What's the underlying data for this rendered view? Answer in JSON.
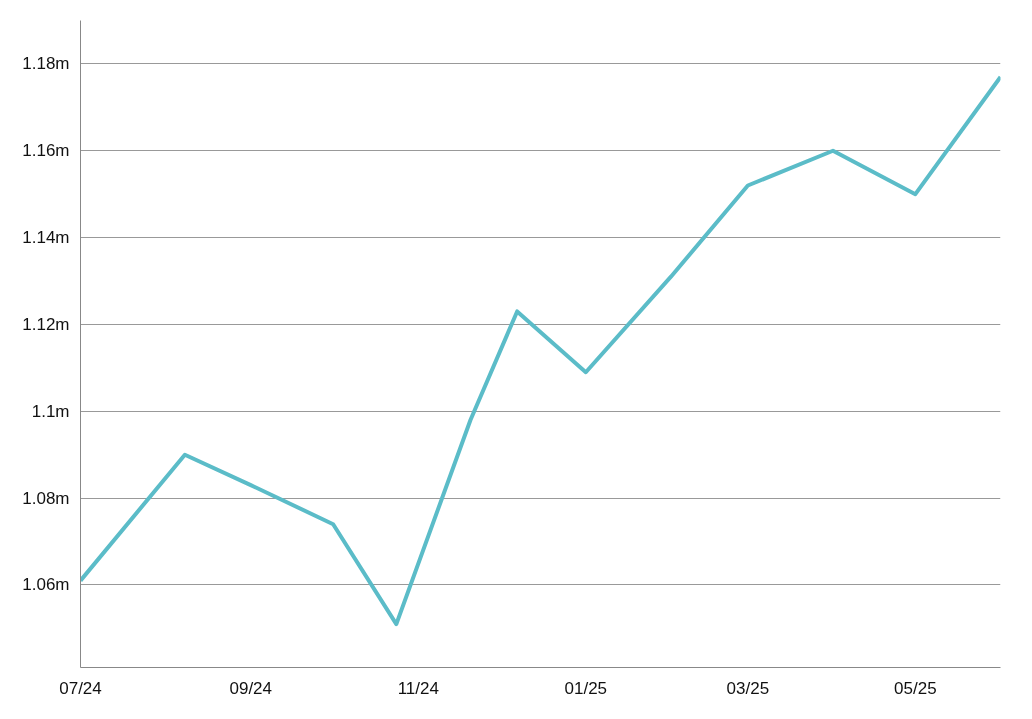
{
  "chart_data": {
    "type": "line",
    "x": [
      "2024-07-01",
      "2024-08-08",
      "2024-09-01",
      "2024-10-01",
      "2024-10-24",
      "2024-11-20",
      "2024-12-07",
      "2025-01-01",
      "2025-02-01",
      "2025-03-01",
      "2025-04-01",
      "2025-05-01",
      "2025-06-01"
    ],
    "series": [
      {
        "color": "#5bbcc8",
        "values": [
          1.061,
          1.09,
          1.083,
          1.074,
          1.051,
          1.098,
          1.123,
          1.109,
          1.131,
          1.152,
          1.16,
          1.15,
          1.177
        ]
      }
    ],
    "xlim": [
      "2024-07-01",
      "2025-06-01"
    ],
    "xticks": [
      {
        "value": "2024-07-01",
        "label": "07/24"
      },
      {
        "value": "2024-09-01",
        "label": "09/24"
      },
      {
        "value": "2024-11-01",
        "label": "11/24"
      },
      {
        "value": "2025-01-01",
        "label": "01/25"
      },
      {
        "value": "2025-03-01",
        "label": "03/25"
      },
      {
        "value": "2025-05-01",
        "label": "05/25"
      }
    ],
    "ylim": [
      1.041,
      1.19
    ],
    "yticks": [
      {
        "value": 1.06,
        "label": "1.06m"
      },
      {
        "value": 1.08,
        "label": "1.08m"
      },
      {
        "value": 1.1,
        "label": "1.1m"
      },
      {
        "value": 1.12,
        "label": "1.12m"
      },
      {
        "value": 1.14,
        "label": "1.14m"
      },
      {
        "value": 1.16,
        "label": "1.16m"
      },
      {
        "value": 1.18,
        "label": "1.18m"
      }
    ],
    "grid": "y",
    "marker": "none",
    "line_style": "solid"
  }
}
